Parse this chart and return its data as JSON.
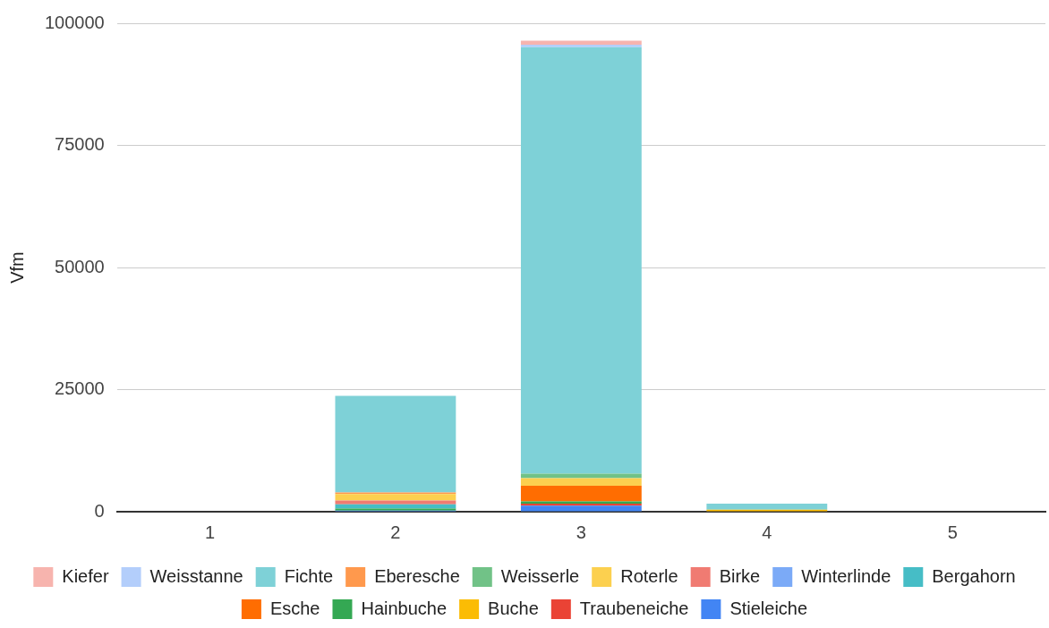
{
  "chart_data": {
    "type": "bar",
    "stacked": true,
    "ylabel": "Vfm",
    "categories": [
      "1",
      "2",
      "3",
      "4",
      "5"
    ],
    "ylim": [
      0,
      100000
    ],
    "yticks": [
      0,
      25000,
      50000,
      75000,
      100000
    ],
    "grid": "y",
    "legend": "bottom",
    "series": [
      {
        "name": "Stieleiche",
        "color": "#4285f4",
        "values": [
          0,
          250,
          1250,
          0,
          0
        ]
      },
      {
        "name": "Traubeneiche",
        "color": "#ea4335",
        "values": [
          0,
          0,
          400,
          0,
          0
        ]
      },
      {
        "name": "Buche",
        "color": "#fbbc04",
        "values": [
          0,
          0,
          0,
          400,
          0
        ]
      },
      {
        "name": "Hainbuche",
        "color": "#34a853",
        "values": [
          0,
          400,
          450,
          0,
          0
        ]
      },
      {
        "name": "Esche",
        "color": "#ff6d01",
        "values": [
          0,
          0,
          3200,
          0,
          0
        ]
      },
      {
        "name": "Bergahorn",
        "color": "#46bdc6",
        "values": [
          0,
          850,
          0,
          0,
          0
        ]
      },
      {
        "name": "Winterlinde",
        "color": "#7baaf7",
        "values": [
          0,
          0,
          0,
          0,
          0
        ]
      },
      {
        "name": "Birke",
        "color": "#f07b72",
        "values": [
          0,
          800,
          0,
          0,
          0
        ]
      },
      {
        "name": "Roterle",
        "color": "#fcd04f",
        "values": [
          0,
          1300,
          1570,
          0,
          0
        ]
      },
      {
        "name": "Weisserle",
        "color": "#71c287",
        "values": [
          0,
          0,
          920,
          0,
          0
        ]
      },
      {
        "name": "Eberesche",
        "color": "#ff994d",
        "values": [
          0,
          330,
          0,
          0,
          0
        ]
      },
      {
        "name": "Fichte",
        "color": "#7ed1d7",
        "values": [
          0,
          19800,
          87300,
          1250,
          0
        ]
      },
      {
        "name": "Weisstanne",
        "color": "#b3cefb",
        "values": [
          0,
          0,
          520,
          0,
          0
        ]
      },
      {
        "name": "Kiefer",
        "color": "#f7b4ae",
        "values": [
          0,
          0,
          800,
          0,
          0
        ]
      }
    ]
  }
}
